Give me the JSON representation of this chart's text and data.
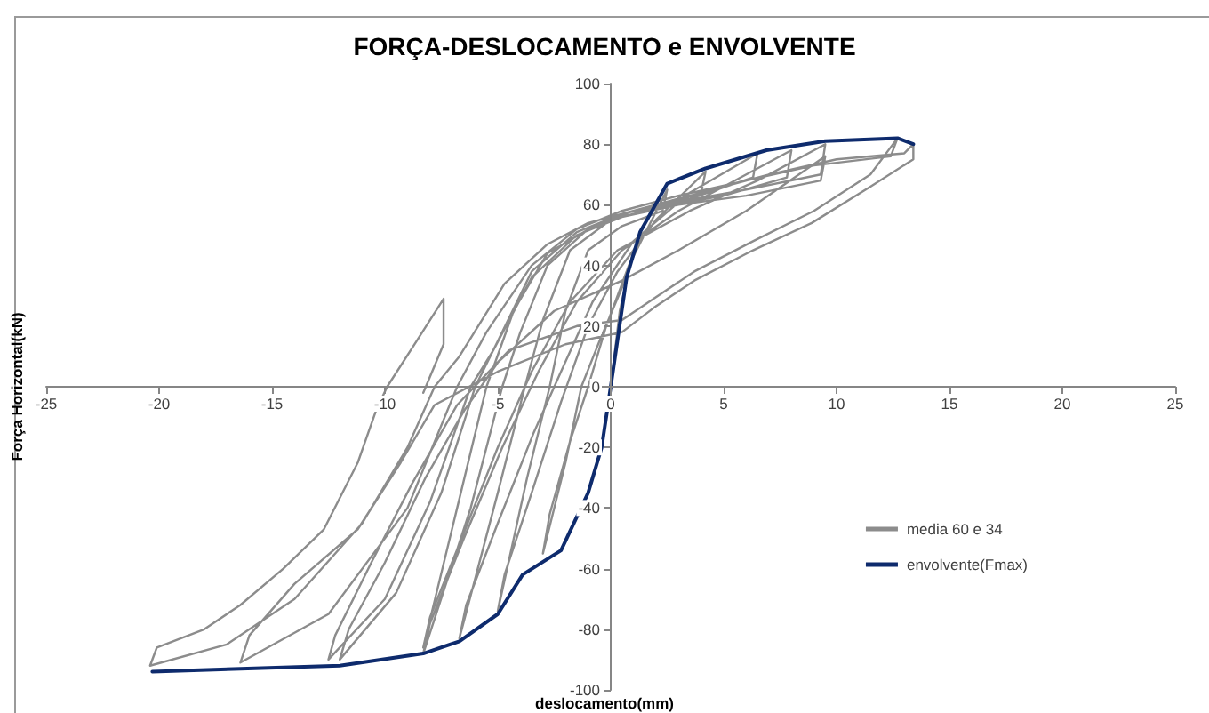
{
  "chart_data": {
    "type": "line",
    "title": "FORÇA-DESLOCAMENTO e ENVOLVENTE",
    "xlabel": "deslocamento(mm)",
    "ylabel": "Força Horizontal(kN)",
    "xlim": [
      -25,
      25
    ],
    "xticks": [
      -25,
      -20,
      -15,
      -10,
      -5,
      0,
      5,
      10,
      15,
      20,
      25
    ],
    "ylim": [
      -100,
      100
    ],
    "yticks": [
      -100,
      -80,
      -60,
      -40,
      -20,
      0,
      20,
      40,
      60,
      80,
      100
    ],
    "grid": false,
    "legend": "bottom right",
    "marker": "none",
    "line_style": "solid",
    "series": [
      {
        "name": "media 60 e 34",
        "color": "#8c8c8c",
        "x": [
          0,
          0.4,
          1.0,
          0.8,
          -0.5,
          -1.3,
          -2.0,
          -3.0,
          -2.7,
          -1.8,
          -1.0,
          -0.2,
          0.8,
          2.5,
          2.3,
          0.5,
          -1.0,
          -2.0,
          -2.7,
          -3.7,
          -5.0,
          -4.7,
          -3.5,
          -2.2,
          -1.0,
          0.3,
          2.0,
          4.2,
          4.0,
          2.0,
          0,
          -1.8,
          -3.0,
          -3.8,
          -5.0,
          -6.7,
          -6.4,
          -5.0,
          -3.4,
          -2.2,
          -0.8,
          1.0,
          3.5,
          6.5,
          6.3,
          3.5,
          1.0,
          -1.0,
          -2.8,
          -4.0,
          -4.8,
          -6.2,
          -8.3,
          -8.0,
          -6.5,
          -4.8,
          -3.2,
          -1.5,
          0.5,
          3.0,
          6.0,
          8.0,
          7.8,
          5.0,
          2.0,
          -0.5,
          -2.8,
          -4.3,
          -5.5,
          -6.8,
          -8.3,
          -8.0,
          -6.6,
          -5.0,
          -3.5,
          -1.8,
          0.3,
          3.5,
          6.5,
          9.5,
          9.3,
          6.0,
          3.0,
          0.5,
          -1.5,
          -3.5,
          -5.0,
          -6.0,
          -7.5,
          -9.5,
          -12.0,
          -11.6,
          -10.0,
          -8.2,
          -6.5,
          -5.0,
          -2.5,
          0.5,
          3.0,
          6.0,
          9.5,
          9.3,
          6.0,
          3.0,
          0.5,
          -1.5,
          -3.5,
          -5.2,
          -6.2,
          -8.0,
          -10.0,
          -12.5,
          -12.2,
          -10.6,
          -8.8,
          -6.8,
          -4.5,
          -1.5,
          0.5,
          1.9,
          3.7,
          6.3,
          9.0,
          11.5,
          12.7,
          12.4,
          9.0,
          6.0,
          3.0,
          0.5,
          -1.5,
          -3.5,
          -5.5,
          -6.8,
          -9.0,
          -12.5,
          -16.4,
          -16.0,
          -14.0,
          -11.2,
          -9.3,
          -7.8,
          -5.0,
          -2.0,
          0.5,
          1.9,
          3.7,
          6.3,
          8.9,
          11.5,
          13.4,
          13.4,
          13.0,
          10.0,
          7.0,
          4.0,
          1.0,
          -1.0,
          -2.8,
          -4.7,
          -6.7,
          -7.8,
          -9.0,
          -11.0,
          -14.0,
          -17.0,
          -20.4,
          -20.1,
          -18.0,
          -16.4,
          -14.5,
          -12.7,
          -11.2,
          -10.4,
          -9.9,
          -8.6,
          -7.4,
          -7.4,
          -8.3
        ],
        "values": [
          0,
          25,
          45,
          38,
          15,
          0,
          -25,
          -55,
          -42,
          -18,
          0,
          20,
          40,
          65,
          58,
          53,
          45,
          25,
          0,
          -30,
          -74,
          -62,
          -35,
          -5,
          20,
          38,
          55,
          71,
          64,
          59,
          55,
          45,
          22,
          0,
          -35,
          -83,
          -72,
          -45,
          -15,
          5,
          28,
          48,
          64,
          77,
          69,
          62,
          58,
          52,
          40,
          18,
          0,
          -40,
          -88,
          -78,
          -50,
          -20,
          5,
          28,
          45,
          58,
          70,
          78,
          69,
          63,
          59,
          54,
          44,
          25,
          0,
          -40,
          -86,
          -76,
          -50,
          -20,
          5,
          28,
          45,
          58,
          68,
          80,
          70,
          65,
          61,
          57,
          51,
          38,
          15,
          0,
          -35,
          -68,
          -90,
          -80,
          -58,
          -30,
          -8,
          8,
          25,
          35,
          45,
          58,
          76,
          68,
          63,
          60,
          56,
          50,
          36,
          12,
          0,
          -38,
          -70,
          -90,
          -82,
          -58,
          -32,
          -6,
          12,
          20,
          22,
          29,
          38,
          48,
          58,
          70,
          82,
          76,
          73,
          68,
          63,
          58,
          52,
          40,
          18,
          0,
          -40,
          -75,
          -91,
          -82,
          -65,
          -47,
          -25,
          -6,
          5,
          14,
          18,
          26,
          35,
          45,
          54,
          66,
          75,
          80,
          77,
          75,
          70,
          64,
          58,
          54,
          47,
          34,
          10,
          0,
          -20,
          -45,
          -70,
          -85,
          -92,
          -86,
          -80,
          -72,
          -60,
          -47,
          -25,
          -8,
          0,
          15,
          29,
          14,
          -2
        ]
      },
      {
        "name": "envolvente(Fmax)",
        "color": "#0e2b6d",
        "x": [
          -20.3,
          -16.4,
          -12.0,
          -8.3,
          -6.7,
          -5.0,
          -3.9,
          -2.2,
          -1.0,
          -0.4,
          0,
          0.7,
          1.3,
          2.5,
          4.2,
          6.9,
          9.5,
          12.7,
          13.4
        ],
        "values": [
          -94,
          -93,
          -92,
          -88,
          -84,
          -75,
          -62,
          -54,
          -35,
          -20,
          0,
          36,
          51,
          67,
          72,
          78,
          81,
          82,
          80
        ]
      }
    ]
  }
}
